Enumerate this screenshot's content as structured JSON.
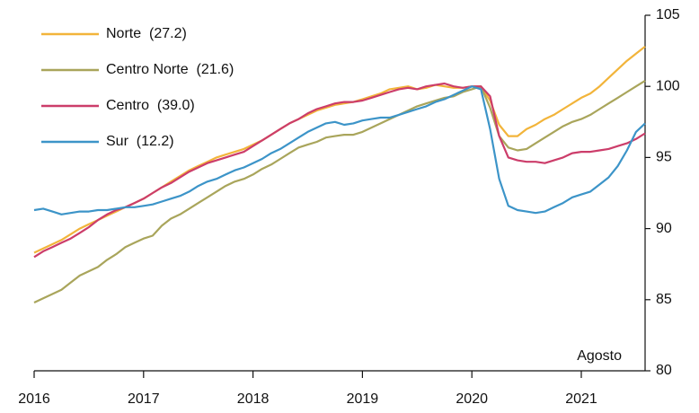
{
  "chart_data": {
    "type": "line",
    "annotation": "Agosto",
    "x": [
      2016,
      2016.083,
      2016.167,
      2016.25,
      2016.333,
      2016.417,
      2016.5,
      2016.583,
      2016.667,
      2016.75,
      2016.833,
      2016.917,
      2017,
      2017.083,
      2017.167,
      2017.25,
      2017.333,
      2017.417,
      2017.5,
      2017.583,
      2017.667,
      2017.75,
      2017.833,
      2017.917,
      2018,
      2018.083,
      2018.167,
      2018.25,
      2018.333,
      2018.417,
      2018.5,
      2018.583,
      2018.667,
      2018.75,
      2018.833,
      2018.917,
      2019,
      2019.083,
      2019.167,
      2019.25,
      2019.333,
      2019.417,
      2019.5,
      2019.583,
      2019.667,
      2019.75,
      2019.833,
      2019.917,
      2020,
      2020.083,
      2020.167,
      2020.25,
      2020.333,
      2020.417,
      2020.5,
      2020.583,
      2020.667,
      2020.75,
      2020.833,
      2020.917,
      2021,
      2021.083,
      2021.167,
      2021.25,
      2021.333,
      2021.417,
      2021.5,
      2021.583
    ],
    "series": [
      {
        "name": "Norte  (27.2)",
        "color": "#f2b43a",
        "values": [
          88.3,
          88.6,
          88.9,
          89.2,
          89.6,
          90.0,
          90.3,
          90.6,
          90.9,
          91.2,
          91.5,
          91.8,
          92.1,
          92.5,
          92.9,
          93.3,
          93.7,
          94.1,
          94.4,
          94.7,
          95.0,
          95.2,
          95.4,
          95.6,
          95.9,
          96.2,
          96.6,
          97.0,
          97.4,
          97.7,
          98.0,
          98.3,
          98.5,
          98.7,
          98.8,
          98.9,
          99.1,
          99.3,
          99.5,
          99.8,
          99.9,
          100.0,
          99.8,
          99.9,
          100.1,
          100.0,
          99.9,
          99.9,
          100.0,
          100.0,
          99.0,
          97.3,
          96.5,
          96.5,
          97.0,
          97.3,
          97.7,
          98.0,
          98.4,
          98.8,
          99.2,
          99.5,
          100.0,
          100.6,
          101.2,
          101.8,
          102.3,
          102.8
        ]
      },
      {
        "name": "Centro Norte  (21.6)",
        "color": "#a9a55b",
        "values": [
          84.8,
          85.1,
          85.4,
          85.7,
          86.2,
          86.7,
          87.0,
          87.3,
          87.8,
          88.2,
          88.7,
          89.0,
          89.3,
          89.5,
          90.2,
          90.7,
          91.0,
          91.4,
          91.8,
          92.2,
          92.6,
          93.0,
          93.3,
          93.5,
          93.8,
          94.2,
          94.5,
          94.9,
          95.3,
          95.7,
          95.9,
          96.1,
          96.4,
          96.5,
          96.6,
          96.6,
          96.8,
          97.1,
          97.4,
          97.7,
          98.0,
          98.3,
          98.6,
          98.8,
          99.0,
          99.2,
          99.3,
          99.6,
          99.8,
          100.0,
          98.5,
          96.5,
          95.7,
          95.5,
          95.6,
          96.0,
          96.4,
          96.8,
          97.2,
          97.5,
          97.7,
          98.0,
          98.4,
          98.8,
          99.2,
          99.6,
          100.0,
          100.4
        ]
      },
      {
        "name": "Centro  (39.0)",
        "color": "#cc3d6a",
        "values": [
          88.0,
          88.4,
          88.7,
          89.0,
          89.3,
          89.7,
          90.1,
          90.6,
          91.0,
          91.3,
          91.5,
          91.8,
          92.1,
          92.5,
          92.9,
          93.2,
          93.6,
          94.0,
          94.3,
          94.6,
          94.8,
          95.0,
          95.2,
          95.4,
          95.8,
          96.2,
          96.6,
          97.0,
          97.4,
          97.7,
          98.1,
          98.4,
          98.6,
          98.8,
          98.9,
          98.9,
          99.0,
          99.2,
          99.4,
          99.6,
          99.8,
          99.9,
          99.8,
          100.0,
          100.1,
          100.2,
          100.0,
          99.9,
          100.0,
          100.0,
          99.3,
          96.5,
          95.0,
          94.8,
          94.7,
          94.7,
          94.6,
          94.8,
          95.0,
          95.3,
          95.4,
          95.4,
          95.5,
          95.6,
          95.8,
          96.0,
          96.3,
          96.7
        ]
      },
      {
        "name": "Sur  (12.2)",
        "color": "#3c94c8",
        "values": [
          91.3,
          91.4,
          91.2,
          91.0,
          91.1,
          91.2,
          91.2,
          91.3,
          91.3,
          91.4,
          91.5,
          91.5,
          91.6,
          91.7,
          91.9,
          92.1,
          92.3,
          92.6,
          93.0,
          93.3,
          93.5,
          93.8,
          94.1,
          94.3,
          94.6,
          94.9,
          95.3,
          95.6,
          96.0,
          96.4,
          96.8,
          97.1,
          97.4,
          97.5,
          97.3,
          97.4,
          97.6,
          97.7,
          97.8,
          97.8,
          98.0,
          98.2,
          98.4,
          98.6,
          98.9,
          99.1,
          99.4,
          99.7,
          100.0,
          99.8,
          97.0,
          93.5,
          91.6,
          91.3,
          91.2,
          91.1,
          91.2,
          91.5,
          91.8,
          92.2,
          92.4,
          92.6,
          93.1,
          93.6,
          94.4,
          95.5,
          96.8,
          97.4
        ]
      }
    ],
    "xlim": [
      2016,
      2021.583
    ],
    "xticks": [
      2016,
      2017,
      2018,
      2019,
      2020,
      2021
    ],
    "ylim": [
      80,
      105
    ],
    "yticks": [
      80,
      85,
      90,
      95,
      100,
      105
    ],
    "y_axis_side": "right",
    "legend": "upper left",
    "grid": false
  }
}
